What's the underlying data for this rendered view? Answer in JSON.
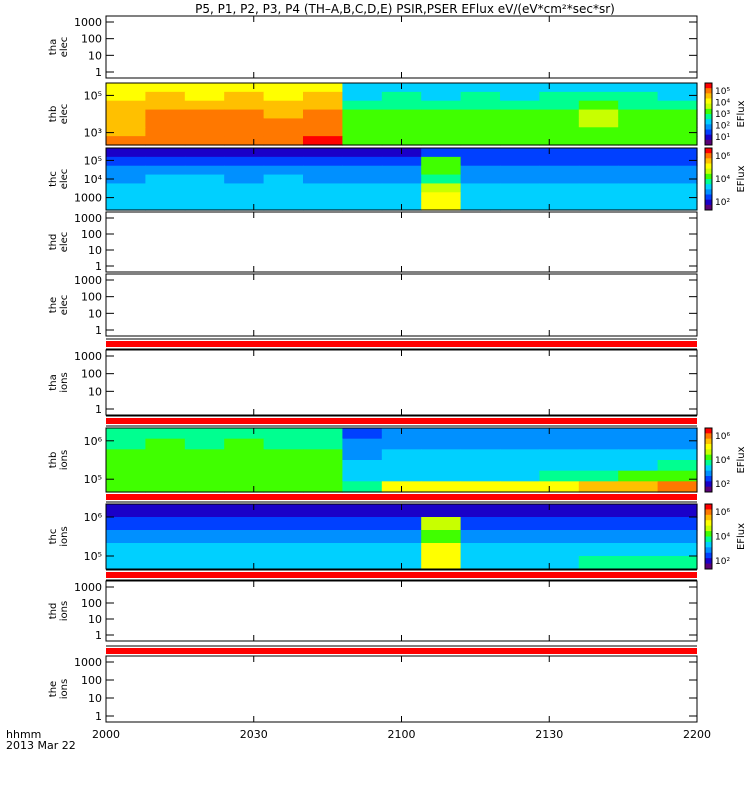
{
  "title": "P5, P1, P2, P3, P4 (TH–A,B,C,D,E) PSIR,PSER EFlux eV/(eV*cm²*sec*sr)",
  "time_axis": {
    "label_line1": "hhmm",
    "label_line2": "2013 Mar 22",
    "ticks": [
      "2000",
      "2030",
      "2100",
      "2130",
      "2200"
    ]
  },
  "colorbar_label": "EFlux",
  "colors": {
    "red_band": "#ff0000",
    "colormap": [
      "#5a0078",
      "#1a00c8",
      "#0040ff",
      "#0090ff",
      "#00d0ff",
      "#00ff90",
      "#40ff00",
      "#c8ff00",
      "#ffff00",
      "#ffc000",
      "#ff7800",
      "#ff0000"
    ]
  },
  "chart_data": [
    {
      "type": "heatmap",
      "panel": "tha-elec",
      "label1": "tha",
      "label2": "elec",
      "yticks": [
        "1000",
        "100",
        "10",
        "1"
      ],
      "has_data": false
    },
    {
      "type": "heatmap",
      "panel": "thb-elec",
      "label1": "thb",
      "label2": "elec",
      "yticks": [
        "10⁵",
        "10³"
      ],
      "has_data": true,
      "colorbar_ticks": [
        "10⁵",
        "10⁴",
        "10³",
        "10²",
        "10¹"
      ],
      "cells": [
        [
          8,
          8,
          8,
          8,
          8,
          8,
          4,
          4,
          4,
          4,
          4,
          4,
          4,
          4,
          4
        ],
        [
          8,
          9,
          8,
          9,
          8,
          9,
          4,
          5,
          4,
          5,
          4,
          5,
          5,
          5,
          4
        ],
        [
          9,
          9,
          9,
          9,
          9,
          9,
          5,
          5,
          5,
          5,
          5,
          5,
          6,
          5,
          5
        ],
        [
          9,
          10,
          10,
          10,
          9,
          10,
          6,
          6,
          6,
          6,
          6,
          6,
          7,
          6,
          6
        ],
        [
          9,
          10,
          10,
          10,
          10,
          10,
          6,
          6,
          6,
          6,
          6,
          6,
          7,
          6,
          6
        ],
        [
          9,
          10,
          10,
          10,
          10,
          10,
          6,
          6,
          6,
          6,
          6,
          6,
          6,
          6,
          6
        ],
        [
          10,
          10,
          10,
          10,
          10,
          11,
          6,
          6,
          6,
          6,
          6,
          6,
          6,
          6,
          6
        ]
      ]
    },
    {
      "type": "heatmap",
      "panel": "thc-elec",
      "label1": "thc",
      "label2": "elec",
      "yticks": [
        "10⁵",
        "10⁴",
        "1000"
      ],
      "has_data": true,
      "colorbar_ticks": [
        "10⁶",
        "10⁴",
        "10²"
      ],
      "cells": [
        [
          1,
          1,
          1,
          1,
          1,
          1,
          1,
          1,
          2,
          2,
          2,
          2,
          2,
          2,
          2
        ],
        [
          2,
          2,
          2,
          2,
          2,
          2,
          2,
          2,
          6,
          2,
          2,
          2,
          2,
          2,
          2
        ],
        [
          3,
          3,
          3,
          3,
          3,
          3,
          3,
          3,
          6,
          3,
          3,
          3,
          3,
          3,
          3
        ],
        [
          3,
          4,
          4,
          3,
          4,
          3,
          3,
          3,
          5,
          3,
          3,
          3,
          3,
          3,
          3
        ],
        [
          4,
          4,
          4,
          4,
          4,
          4,
          4,
          4,
          7,
          4,
          4,
          4,
          4,
          4,
          4
        ],
        [
          4,
          4,
          4,
          4,
          4,
          4,
          4,
          4,
          8,
          4,
          4,
          4,
          4,
          4,
          4
        ],
        [
          4,
          4,
          4,
          4,
          4,
          4,
          4,
          4,
          8,
          4,
          4,
          4,
          4,
          4,
          4
        ]
      ]
    },
    {
      "type": "heatmap",
      "panel": "thd-elec",
      "label1": "thd",
      "label2": "elec",
      "yticks": [
        "1000",
        "100",
        "10",
        "1"
      ],
      "has_data": false
    },
    {
      "type": "heatmap",
      "panel": "the-elec",
      "label1": "the",
      "label2": "elec",
      "yticks": [
        "1000",
        "100",
        "10",
        "1"
      ],
      "has_data": false,
      "red_band": "bottom"
    },
    {
      "type": "heatmap",
      "panel": "tha-ions",
      "label1": "tha",
      "label2": "ions",
      "yticks": [
        "1000",
        "100",
        "10",
        "1"
      ],
      "has_data": false,
      "red_band": "bottom"
    },
    {
      "type": "heatmap",
      "panel": "thb-ions",
      "label1": "thb",
      "label2": "ions",
      "yticks": [
        "10⁶",
        "10⁵"
      ],
      "has_data": true,
      "colorbar_ticks": [
        "10⁶",
        "10⁴",
        "10²"
      ],
      "red_band": "bottom",
      "cells": [
        [
          5,
          5,
          5,
          5,
          5,
          5,
          2,
          3,
          3,
          3,
          3,
          3,
          3,
          3,
          3
        ],
        [
          5,
          6,
          5,
          6,
          5,
          5,
          3,
          3,
          3,
          3,
          3,
          3,
          3,
          3,
          3
        ],
        [
          6,
          6,
          6,
          6,
          6,
          6,
          3,
          4,
          4,
          4,
          4,
          4,
          4,
          4,
          4
        ],
        [
          6,
          6,
          6,
          6,
          6,
          6,
          4,
          4,
          4,
          4,
          4,
          4,
          4,
          4,
          5
        ],
        [
          6,
          6,
          6,
          6,
          6,
          6,
          4,
          4,
          4,
          4,
          4,
          5,
          5,
          6,
          6
        ],
        [
          6,
          6,
          6,
          6,
          6,
          6,
          5,
          8,
          8,
          8,
          8,
          8,
          9,
          9,
          10
        ]
      ]
    },
    {
      "type": "heatmap",
      "panel": "thc-ions",
      "label1": "thc",
      "label2": "ions",
      "yticks": [
        "10⁶",
        "10⁵"
      ],
      "has_data": true,
      "colorbar_ticks": [
        "10⁶",
        "10⁴",
        "10²"
      ],
      "red_band": "bottom",
      "cells": [
        [
          1,
          1,
          1,
          1,
          1,
          1,
          1,
          1,
          1,
          1,
          1,
          1,
          1,
          1,
          1
        ],
        [
          2,
          2,
          2,
          2,
          2,
          2,
          2,
          2,
          7,
          2,
          2,
          2,
          2,
          2,
          2
        ],
        [
          3,
          3,
          3,
          3,
          3,
          3,
          3,
          3,
          6,
          3,
          3,
          3,
          3,
          3,
          3
        ],
        [
          4,
          4,
          4,
          4,
          4,
          4,
          4,
          4,
          8,
          4,
          4,
          4,
          4,
          4,
          4
        ],
        [
          4,
          4,
          4,
          4,
          4,
          4,
          4,
          4,
          8,
          4,
          4,
          4,
          5,
          5,
          5
        ]
      ]
    },
    {
      "type": "heatmap",
      "panel": "thd-ions",
      "label1": "thd",
      "label2": "ions",
      "yticks": [
        "1000",
        "100",
        "10",
        "1"
      ],
      "has_data": false,
      "red_band": "bottom"
    },
    {
      "type": "heatmap",
      "panel": "the-ions",
      "label1": "the",
      "label2": "ions",
      "yticks": [
        "1000",
        "100",
        "10",
        "1"
      ],
      "has_data": false
    }
  ]
}
